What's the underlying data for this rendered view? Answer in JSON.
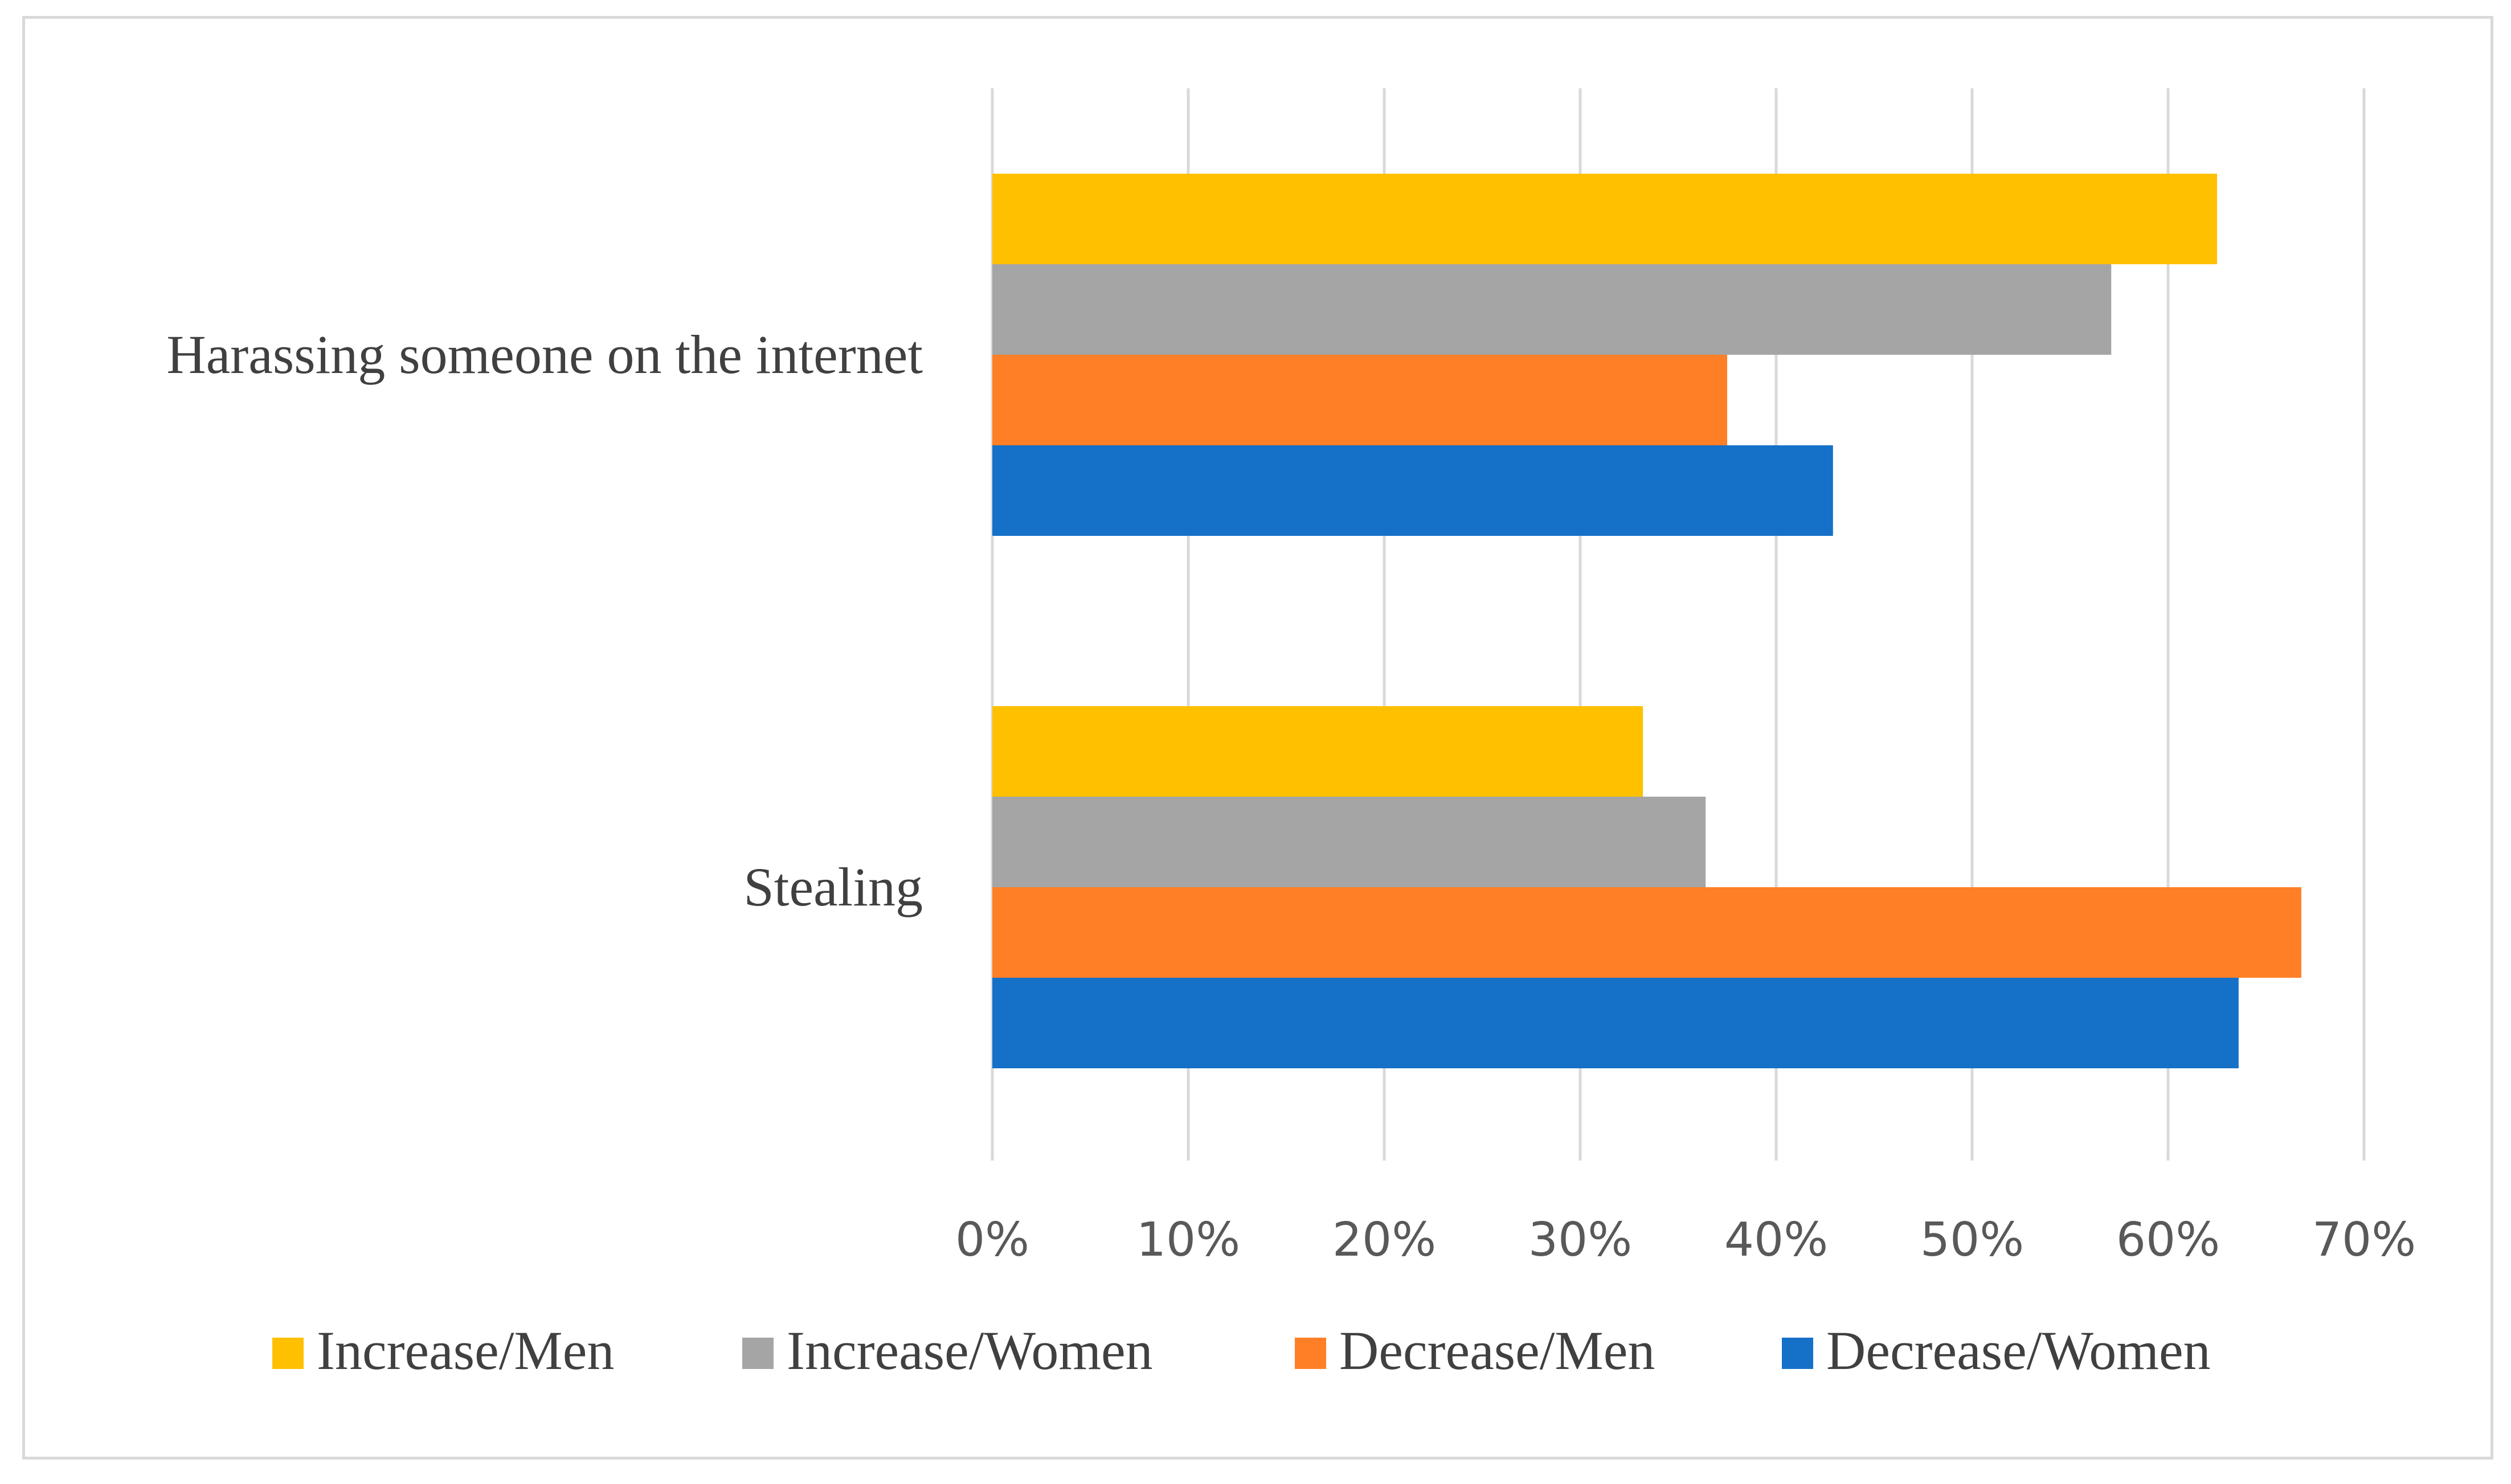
{
  "chart_data": {
    "type": "bar",
    "orientation": "horizontal",
    "categories": [
      "Harassing someone on the internet",
      "Stealing"
    ],
    "series": [
      {
        "name": "Increase/Men",
        "color": "#FFC000",
        "values": [
          62.5,
          33.2
        ]
      },
      {
        "name": "Increase/Women",
        "color": "#A5A5A5",
        "values": [
          57.1,
          36.4
        ]
      },
      {
        "name": "Decrease/Men",
        "color": "#FF7F27",
        "values": [
          37.5,
          66.8
        ]
      },
      {
        "name": "Decrease/Women",
        "color": "#1570C8",
        "values": [
          42.9,
          63.6
        ]
      }
    ],
    "xlim": [
      0,
      70
    ],
    "x_ticks": [
      "0%",
      "10%",
      "20%",
      "30%",
      "40%",
      "50%",
      "60%",
      "70%"
    ],
    "grid": "vertical",
    "legend_position": "bottom",
    "title": "",
    "xlabel": "",
    "ylabel": ""
  }
}
